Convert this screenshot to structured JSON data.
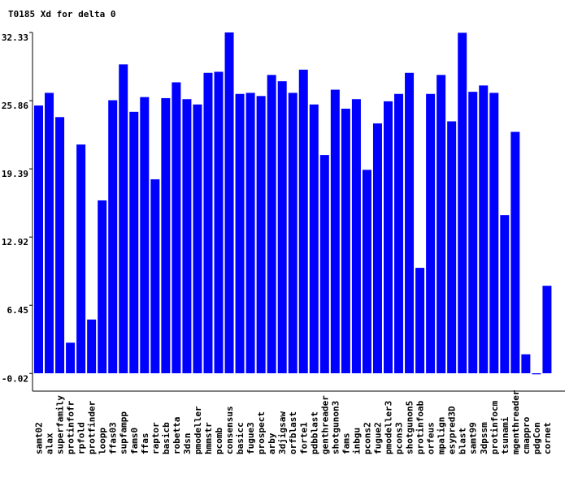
{
  "chart_data": {
    "type": "bar",
    "title": "T0185 Xd for delta 0",
    "categories": [
      "samt02",
      "alax",
      "superfamily",
      "protinfofr",
      "rpfold",
      "protfinder",
      "loopp",
      "ffas03",
      "supfampp",
      "fams0",
      "ffas",
      "raptor",
      "basicb",
      "robetta",
      "3dsn",
      "pmodeller",
      "hmmstr",
      "pcomb",
      "consensus",
      "basicc",
      "fugue3",
      "prospect",
      "arby",
      "3djigsaw",
      "orfblast",
      "forte1",
      "pdbblast",
      "genthreader",
      "shotgunon3",
      "fams",
      "inbgu",
      "pcons2",
      "fugue2",
      "pmodeller3",
      "pcons3",
      "shotgunon5",
      "protinfoab",
      "orfeus",
      "mpalign",
      "esypred3D",
      "blast",
      "samt99",
      "3dpssm",
      "protinfocm",
      "tsunami",
      "mgenthreader",
      "cmappro",
      "pdgCon",
      "cornet"
    ],
    "values": [
      25.4,
      26.6,
      24.3,
      2.9,
      21.7,
      5.1,
      16.4,
      25.9,
      29.3,
      24.8,
      26.2,
      18.4,
      26.1,
      27.6,
      26.0,
      25.5,
      28.5,
      28.6,
      32.33,
      26.5,
      26.6,
      26.3,
      28.3,
      27.7,
      26.6,
      28.8,
      25.5,
      20.7,
      26.9,
      25.1,
      26.0,
      19.3,
      23.7,
      25.8,
      26.5,
      28.5,
      10.0,
      26.5,
      28.3,
      23.9,
      32.3,
      26.7,
      27.3,
      26.6,
      15.0,
      22.9,
      1.8,
      -0.1,
      8.3
    ],
    "color": "#0000ff",
    "ylim": [
      -0.02,
      32.33
    ],
    "yticks": [
      -0.02,
      6.45,
      12.92,
      19.39,
      25.86,
      32.33
    ]
  }
}
